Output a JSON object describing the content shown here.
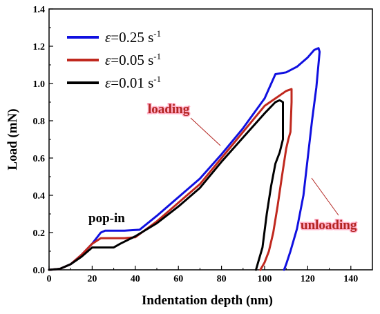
{
  "chart_data": {
    "type": "line",
    "xlabel": "Indentation depth (nm)",
    "ylabel": "Load (mN)",
    "xlim": [
      0,
      150
    ],
    "ylim": [
      0,
      1.4
    ],
    "xticks": [
      "0",
      "20",
      "40",
      "60",
      "80",
      "100",
      "120",
      "140"
    ],
    "yticks": [
      "0.0",
      "0.2",
      "0.4",
      "0.6",
      "0.8",
      "1.0",
      "1.2",
      "1.4"
    ],
    "grid": false,
    "legend_position": "top-left",
    "legend": {
      "prefix": "ε",
      "entries": [
        {
          "value": "=0.25 s",
          "sup": "-1"
        },
        {
          "value": "=0.05 s",
          "sup": "-1"
        },
        {
          "value": "=0.01 s",
          "sup": "-1"
        }
      ]
    },
    "annotations": {
      "popin": "pop-in",
      "loading": "loading",
      "unloading": "unloading"
    },
    "series": [
      {
        "color": "#1010e0",
        "x": [
          0,
          5,
          10,
          15,
          20,
          24,
          26,
          30,
          35,
          42,
          50,
          60,
          70,
          80,
          90,
          100,
          105,
          110,
          115,
          120,
          123,
          125,
          125.5,
          124,
          122,
          120,
          118,
          115,
          112,
          110,
          109
        ],
        "y": [
          0,
          0.005,
          0.03,
          0.08,
          0.14,
          0.2,
          0.21,
          0.21,
          0.21,
          0.215,
          0.29,
          0.39,
          0.49,
          0.62,
          0.76,
          0.92,
          1.05,
          1.06,
          1.09,
          1.14,
          1.18,
          1.19,
          1.17,
          0.98,
          0.8,
          0.6,
          0.4,
          0.22,
          0.1,
          0.03,
          0
        ]
      },
      {
        "color": "#c0281e",
        "x": [
          0,
          5,
          10,
          15,
          20,
          24,
          26,
          30,
          35,
          40,
          50,
          60,
          70,
          80,
          90,
          100,
          105,
          110,
          112.5,
          112.5,
          112,
          111,
          110,
          108,
          106,
          104,
          102,
          100,
          98
        ],
        "y": [
          0,
          0.005,
          0.03,
          0.08,
          0.14,
          0.17,
          0.17,
          0.17,
          0.17,
          0.175,
          0.26,
          0.36,
          0.46,
          0.6,
          0.74,
          0.88,
          0.92,
          0.96,
          0.97,
          0.9,
          0.74,
          0.7,
          0.65,
          0.5,
          0.34,
          0.2,
          0.1,
          0.04,
          0
        ]
      },
      {
        "color": "#000000",
        "x": [
          0,
          5,
          10,
          15,
          20,
          24,
          30,
          33,
          40,
          50,
          60,
          70,
          80,
          90,
          100,
          105,
          107,
          108.5,
          108.5,
          107,
          105,
          103,
          101,
          99,
          97,
          96
        ],
        "y": [
          0,
          0.005,
          0.03,
          0.07,
          0.12,
          0.12,
          0.12,
          0.14,
          0.18,
          0.25,
          0.34,
          0.44,
          0.58,
          0.71,
          0.84,
          0.9,
          0.91,
          0.9,
          0.7,
          0.63,
          0.57,
          0.45,
          0.3,
          0.12,
          0.04,
          0
        ]
      }
    ]
  }
}
